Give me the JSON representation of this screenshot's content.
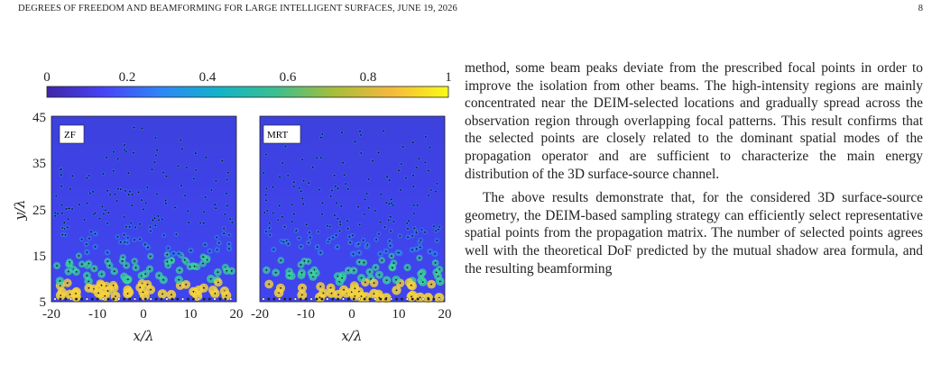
{
  "header": {
    "running_head": "DEGREES OF FREEDOM AND BEAMFORMING FOR LARGE INTELLIGENT SURFACES, JUNE 19, 2026",
    "page_number": "8"
  },
  "figure": {
    "colorbar": {
      "ticks": [
        "0",
        "0.2",
        "0.4",
        "0.6",
        "0.8",
        "1"
      ],
      "range": [
        0,
        1
      ],
      "colormap": [
        "#3e26a8",
        "#4743f8",
        "#2e87f7",
        "#12b3ca",
        "#3bbf8f",
        "#a5be3a",
        "#f5b93c",
        "#f9fb15"
      ]
    },
    "panels": [
      {
        "label": "ZF",
        "xlabel": "x/λ",
        "ylabel": "y/λ",
        "xticks": [
          "-20",
          "-10",
          "0",
          "10",
          "20"
        ],
        "yticks": [
          "45",
          "35",
          "25",
          "15",
          "5"
        ]
      },
      {
        "label": "MRT",
        "xlabel": "x/λ",
        "xticks": [
          "-20",
          "-10",
          "0",
          "10",
          "20"
        ]
      }
    ],
    "axis_range": {
      "x": [
        -20,
        20
      ],
      "y": [
        5,
        45
      ]
    },
    "background_color": "#4044ee"
  },
  "body": {
    "paragraphs": [
      "method, some beam peaks deviate from the prescribed focal points in order to improve the isolation from other beams. The high-intensity regions are mainly concentrated near the DEIM-selected locations and gradually spread across the observation region through overlapping focal patterns. This result confirms that the selected points are closely related to the dominant spatial modes of the propagation operator and are sufficient to characterize the main energy distribution of the 3D surface-source channel.",
      "The above results demonstrate that, for the considered 3D surface-source geometry, the DEIM-based sampling strategy can efficiently select representative spatial points from the propagation matrix. The number of selected points agrees well with the theoretical DoF predicted by the mutual shadow area formula, and the resulting beamforming"
    ]
  }
}
